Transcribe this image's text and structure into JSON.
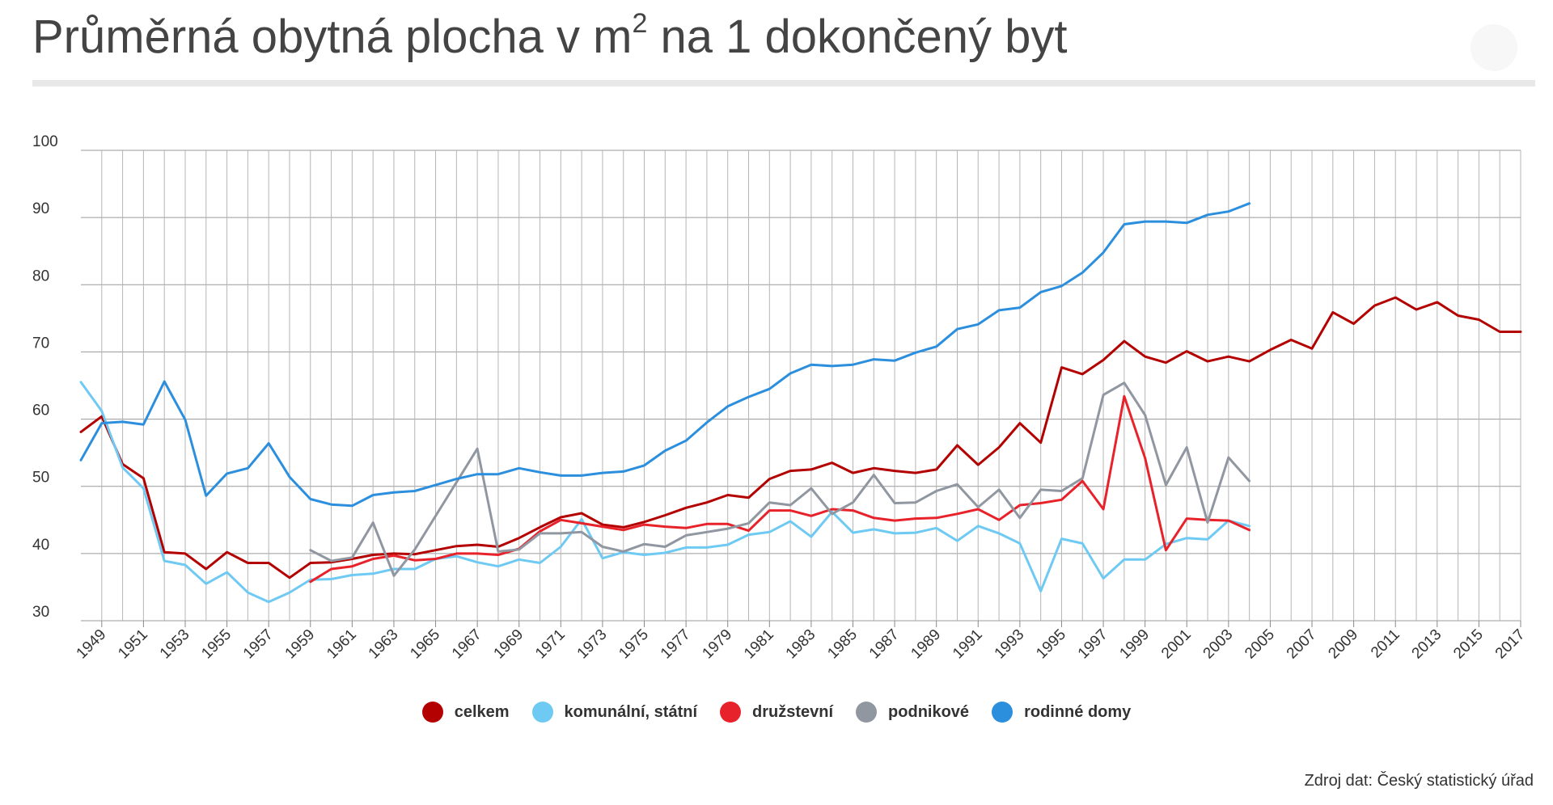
{
  "title": {
    "main": "Průměrná obytná plocha v m",
    "superscript": "2",
    "rest": " na 1 dokončený byt"
  },
  "source": "Zdroj dat: Český statistický úřad",
  "chart_data": {
    "type": "line",
    "ylim": [
      30,
      100
    ],
    "yticks": [
      30,
      40,
      50,
      60,
      70,
      80,
      90,
      100
    ],
    "xlim": [
      1948,
      2017
    ],
    "xtick_labels": [
      1949,
      1951,
      1953,
      1955,
      1957,
      1959,
      1961,
      1963,
      1965,
      1967,
      1969,
      1971,
      1973,
      1975,
      1977,
      1979,
      1981,
      1983,
      1985,
      1987,
      1989,
      1991,
      1993,
      1995,
      1997,
      1999,
      2001,
      2003,
      2005,
      2007,
      2009,
      2011,
      2013,
      2015,
      2017
    ],
    "grid": true,
    "legend": "bottom",
    "series": [
      {
        "name": "celkem",
        "color": "#b30000",
        "x": [
          1948,
          1949,
          1950,
          1951,
          1952,
          1953,
          1954,
          1955,
          1956,
          1957,
          1958,
          1959,
          1960,
          1961,
          1962,
          1963,
          1964,
          1965,
          1966,
          1967,
          1968,
          1969,
          1970,
          1971,
          1972,
          1973,
          1974,
          1975,
          1976,
          1977,
          1978,
          1979,
          1980,
          1981,
          1982,
          1983,
          1984,
          1985,
          1986,
          1987,
          1988,
          1989,
          1990,
          1991,
          1992,
          1993,
          1994,
          1995,
          1996,
          1997,
          1998,
          1999,
          2000,
          2001,
          2002,
          2003,
          2004,
          2005,
          2006,
          2007,
          2008,
          2009,
          2010,
          2011,
          2012,
          2013,
          2014,
          2015,
          2016,
          2017
        ],
        "values": [
          58.1,
          60.4,
          53.3,
          51.2,
          40.2,
          40.0,
          37.7,
          40.2,
          38.6,
          38.6,
          36.4,
          38.6,
          38.7,
          39.2,
          39.8,
          40.0,
          39.9,
          40.5,
          41.1,
          41.3,
          41.0,
          42.3,
          43.9,
          45.4,
          46.0,
          44.3,
          43.9,
          44.7,
          45.7,
          46.8,
          47.6,
          48.7,
          48.3,
          51.1,
          52.3,
          52.5,
          53.5,
          52.0,
          52.7,
          52.3,
          52.0,
          52.5,
          56.1,
          53.2,
          55.8,
          59.4,
          56.5,
          67.7,
          66.7,
          68.8,
          71.6,
          69.3,
          68.4,
          70.1,
          68.6,
          69.3,
          68.6,
          70.3,
          71.8,
          70.5,
          75.9,
          74.2,
          76.9,
          78.1,
          76.3,
          77.4,
          75.4,
          74.8,
          73.0,
          73.0
        ]
      },
      {
        "name": "komunální, státní",
        "color": "#6fcaf3",
        "x": [
          1948,
          1949,
          1950,
          1951,
          1952,
          1953,
          1954,
          1955,
          1956,
          1957,
          1958,
          1959,
          1960,
          1961,
          1962,
          1963,
          1964,
          1965,
          1966,
          1967,
          1968,
          1969,
          1970,
          1971,
          1972,
          1973,
          1974,
          1975,
          1976,
          1977,
          1978,
          1979,
          1980,
          1981,
          1982,
          1983,
          1984,
          1985,
          1986,
          1987,
          1988,
          1989,
          1990,
          1991,
          1992,
          1993,
          1994,
          1995,
          1996,
          1997,
          1998,
          1999,
          2000,
          2001,
          2002,
          2003,
          2004
        ],
        "values": [
          65.5,
          61.2,
          52.8,
          49.7,
          38.9,
          38.3,
          35.5,
          37.2,
          34.2,
          32.8,
          34.2,
          36.1,
          36.2,
          36.8,
          37.0,
          37.7,
          37.7,
          39.2,
          39.6,
          38.7,
          38.1,
          39.1,
          38.6,
          41.0,
          45.1,
          39.3,
          40.2,
          39.8,
          40.1,
          40.9,
          40.9,
          41.3,
          42.8,
          43.2,
          44.8,
          42.5,
          46.2,
          43.1,
          43.6,
          43.0,
          43.1,
          43.8,
          41.9,
          44.1,
          43.0,
          41.5,
          34.4,
          42.2,
          41.5,
          36.3,
          39.1,
          39.1,
          41.4,
          42.3,
          42.1,
          44.9,
          44.1
        ]
      },
      {
        "name": "družstevní",
        "color": "#e8222a",
        "x": [
          1959,
          1960,
          1961,
          1962,
          1963,
          1964,
          1965,
          1966,
          1967,
          1968,
          1969,
          1970,
          1971,
          1972,
          1973,
          1974,
          1975,
          1976,
          1977,
          1978,
          1979,
          1980,
          1981,
          1982,
          1983,
          1984,
          1985,
          1986,
          1987,
          1988,
          1989,
          1990,
          1991,
          1992,
          1993,
          1994,
          1995,
          1996,
          1997,
          1998,
          1999,
          2000,
          2001,
          2002,
          2003,
          2004
        ],
        "values": [
          35.8,
          37.7,
          38.1,
          39.2,
          39.7,
          39.0,
          39.2,
          40.0,
          40.0,
          39.8,
          40.7,
          43.3,
          45.0,
          44.5,
          44.0,
          43.5,
          44.3,
          44.0,
          43.8,
          44.4,
          44.4,
          43.4,
          46.4,
          46.4,
          45.6,
          46.6,
          46.4,
          45.3,
          44.9,
          45.2,
          45.3,
          45.9,
          46.6,
          45.0,
          47.2,
          47.5,
          48.0,
          50.8,
          46.6,
          63.4,
          54.2,
          40.5,
          45.2,
          45.0,
          44.9,
          43.5
        ]
      },
      {
        "name": "podnikové",
        "color": "#9097a1",
        "x": [
          1959,
          1960,
          1961,
          1962,
          1963,
          1964,
          1967,
          1968,
          1969,
          1970,
          1971,
          1972,
          1973,
          1974,
          1975,
          1976,
          1977,
          1978,
          1979,
          1980,
          1981,
          1982,
          1983,
          1984,
          1985,
          1986,
          1987,
          1988,
          1989,
          1990,
          1991,
          1992,
          1993,
          1994,
          1995,
          1996,
          1997,
          1998,
          1999,
          2000,
          2001,
          2002,
          2003,
          2004
        ],
        "values": [
          40.5,
          38.9,
          39.4,
          44.6,
          36.7,
          40.6,
          55.6,
          40.3,
          40.6,
          43.0,
          43.0,
          43.2,
          41.0,
          40.3,
          41.4,
          41.0,
          42.7,
          43.2,
          43.7,
          44.5,
          47.6,
          47.2,
          49.7,
          45.9,
          47.6,
          51.7,
          47.5,
          47.6,
          49.3,
          50.3,
          46.9,
          49.5,
          45.3,
          49.5,
          49.3,
          51.2,
          63.6,
          65.4,
          60.6,
          50.2,
          55.8,
          44.6,
          54.3,
          50.8
        ]
      },
      {
        "name": "rodinné domy",
        "color": "#2c8fde",
        "x": [
          1948,
          1949,
          1950,
          1951,
          1952,
          1953,
          1954,
          1955,
          1956,
          1957,
          1958,
          1959,
          1960,
          1961,
          1962,
          1963,
          1964,
          1965,
          1966,
          1967,
          1968,
          1969,
          1970,
          1971,
          1972,
          1973,
          1974,
          1975,
          1976,
          1977,
          1978,
          1979,
          1980,
          1981,
          1982,
          1983,
          1984,
          1985,
          1986,
          1987,
          1988,
          1989,
          1990,
          1991,
          1992,
          1993,
          1994,
          1995,
          1996,
          1997,
          1998,
          1999,
          2000,
          2001,
          2002,
          2003,
          2004
        ],
        "values": [
          53.9,
          59.4,
          59.6,
          59.2,
          65.6,
          59.9,
          48.6,
          51.9,
          52.7,
          56.4,
          51.4,
          48.1,
          47.3,
          47.1,
          48.7,
          49.1,
          49.3,
          50.2,
          51.1,
          51.8,
          51.8,
          52.7,
          52.1,
          51.6,
          51.6,
          52.0,
          52.2,
          53.1,
          55.3,
          56.8,
          59.5,
          61.9,
          63.3,
          64.5,
          66.8,
          68.1,
          67.9,
          68.1,
          68.9,
          68.7,
          69.9,
          70.8,
          73.4,
          74.1,
          76.2,
          76.6,
          78.9,
          79.8,
          81.8,
          84.8,
          89.0,
          89.4,
          89.4,
          89.2,
          90.4,
          90.9,
          92.1
        ]
      }
    ]
  }
}
